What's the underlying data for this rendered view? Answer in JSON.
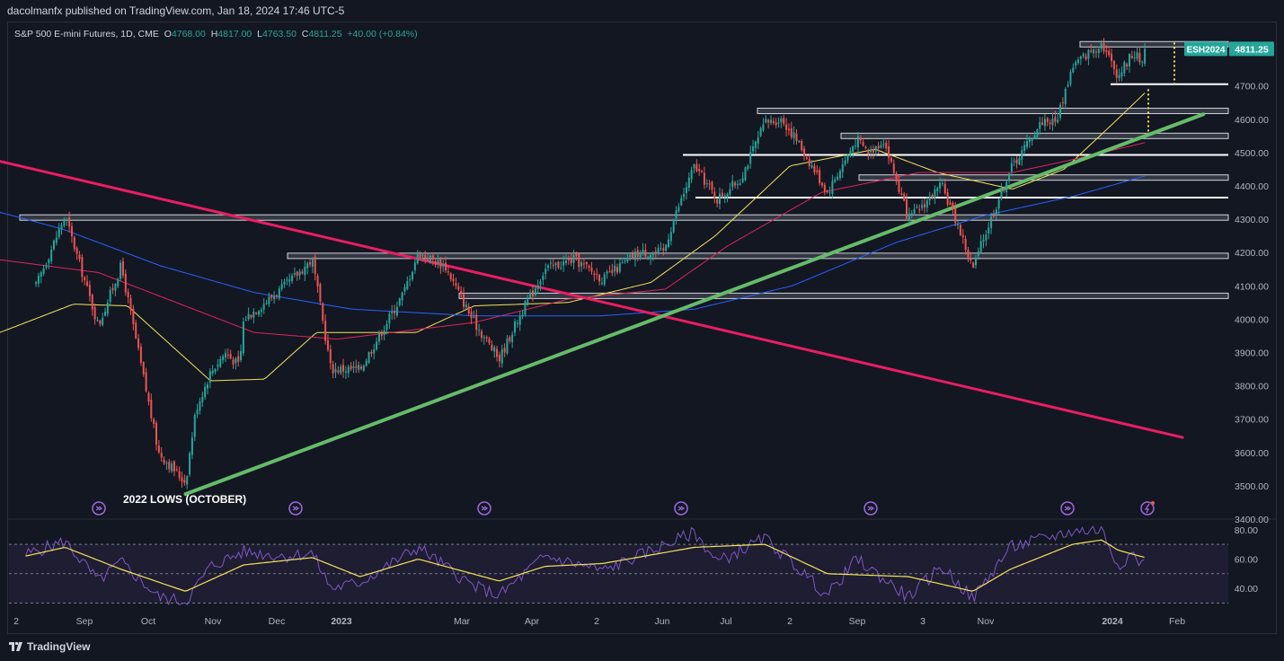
{
  "header": {
    "published": "dacolmanfx published on TradingView.com, Jan 18, 2024 17:46 UTC-5"
  },
  "legend": {
    "symbol": "S&P 500 E-mini Futures, 1D, CME",
    "open_label": "O",
    "open": "4768.00",
    "high_label": "H",
    "high": "4817.00",
    "low_label": "L",
    "low": "4763.50",
    "close_label": "C",
    "close": "4811.25",
    "change": "+40.00 (+0.84%)"
  },
  "price_tag": {
    "ticker": "ESH2024",
    "price": "4811.25"
  },
  "annotation": {
    "lows_label": "2022 LOWS (OCTOBER)"
  },
  "footer": {
    "brand": "TradingView"
  },
  "colors": {
    "background": "#131722",
    "up_candle": "#26a69a",
    "down_candle": "#ef5350",
    "trendline_down": "#e91e63",
    "trendline_up": "#66bb6a",
    "ma_fast": "#f5e35b",
    "ma_mid": "#e0245e",
    "ma_slow": "#2962ff",
    "rsi_line": "#7e57c2",
    "rsi_signal": "#f5e35b",
    "ticker_tag": "#26a69a"
  },
  "chart_data": [
    {
      "type": "candlestick",
      "title": "S&P 500 E-mini Futures, 1D, CME",
      "x_tick_labels": [
        "2",
        "Sep",
        "Oct",
        "Nov",
        "Dec",
        "2023",
        "Mar",
        "Apr",
        "2",
        "Jun",
        "Jul",
        "2",
        "Sep",
        "3",
        "Nov",
        "2024",
        "Feb"
      ],
      "y_tick_labels": [
        "4700.00",
        "4600.00",
        "4500.00",
        "4400.00",
        "4300.00",
        "4200.00",
        "4100.00",
        "4000.00",
        "3900.00",
        "3800.00",
        "3700.00",
        "3600.00",
        "3500.00",
        "3400.00"
      ],
      "ylim": [
        3400,
        4850
      ],
      "price_anchors": [
        [
          "2022-08-02",
          4100
        ],
        [
          "2022-08-16",
          4310
        ],
        [
          "2022-09-01",
          3980
        ],
        [
          "2022-09-12",
          4160
        ],
        [
          "2022-09-30",
          3600
        ],
        [
          "2022-10-13",
          3510
        ],
        [
          "2022-10-18",
          3730
        ],
        [
          "2022-10-25",
          3840
        ],
        [
          "2022-11-01",
          3900
        ],
        [
          "2022-11-08",
          3860
        ],
        [
          "2022-11-10",
          4000
        ],
        [
          "2022-11-30",
          4100
        ],
        [
          "2022-12-13",
          4180
        ],
        [
          "2022-12-22",
          3850
        ],
        [
          "2023-01-05",
          3850
        ],
        [
          "2023-01-26",
          4080
        ],
        [
          "2023-02-02",
          4200
        ],
        [
          "2023-02-15",
          4160
        ],
        [
          "2023-02-28",
          4000
        ],
        [
          "2023-03-13",
          3880
        ],
        [
          "2023-03-22",
          4000
        ],
        [
          "2023-04-04",
          4150
        ],
        [
          "2023-04-18",
          4180
        ],
        [
          "2023-05-02",
          4120
        ],
        [
          "2023-05-19",
          4200
        ],
        [
          "2023-05-31",
          4200
        ],
        [
          "2023-06-05",
          4300
        ],
        [
          "2023-06-15",
          4460
        ],
        [
          "2023-06-26",
          4360
        ],
        [
          "2023-07-07",
          4420
        ],
        [
          "2023-07-19",
          4590
        ],
        [
          "2023-07-27",
          4600
        ],
        [
          "2023-08-03",
          4540
        ],
        [
          "2023-08-18",
          4380
        ],
        [
          "2023-09-01",
          4540
        ],
        [
          "2023-09-07",
          4500
        ],
        [
          "2023-09-14",
          4540
        ],
        [
          "2023-09-26",
          4300
        ],
        [
          "2023-10-12",
          4400
        ],
        [
          "2023-10-20",
          4280
        ],
        [
          "2023-10-27",
          4150
        ],
        [
          "2023-11-01",
          4240
        ],
        [
          "2023-11-14",
          4450
        ],
        [
          "2023-11-30",
          4600
        ],
        [
          "2023-12-06",
          4590
        ],
        [
          "2023-12-14",
          4760
        ],
        [
          "2023-12-28",
          4830
        ],
        [
          "2024-01-05",
          4730
        ],
        [
          "2024-01-12",
          4800
        ],
        [
          "2024-01-17",
          4770
        ],
        [
          "2024-01-18",
          4811.25
        ]
      ],
      "horizontal_levels": [
        {
          "price": 4825,
          "type": "zone"
        },
        {
          "price": 4705,
          "type": "line"
        },
        {
          "price": 4625,
          "type": "zone"
        },
        {
          "price": 4550,
          "type": "zone"
        },
        {
          "price": 4493,
          "type": "line"
        },
        {
          "price": 4425,
          "type": "zone"
        },
        {
          "price": 4365,
          "type": "line"
        },
        {
          "price": 4305,
          "type": "zone"
        },
        {
          "price": 4190,
          "type": "zone"
        },
        {
          "price": 4070,
          "type": "zone"
        }
      ],
      "trendlines": [
        {
          "name": "descending",
          "from": [
            "2022-07-01",
            4495
          ],
          "to": [
            "2024-02-05",
            3645
          ]
        },
        {
          "name": "ascending",
          "from": [
            "2022-10-13",
            3475
          ],
          "to": [
            "2024-02-15",
            4615
          ]
        }
      ],
      "moving_averages": [
        {
          "color": "#f5e35b",
          "points": [
            [
              "2022-07-01",
              3925
            ],
            [
              "2022-08-20",
              4045
            ],
            [
              "2022-09-15",
              4040
            ],
            [
              "2022-10-25",
              3815
            ],
            [
              "2022-11-20",
              3820
            ],
            [
              "2022-12-15",
              3960
            ],
            [
              "2023-02-01",
              3960
            ],
            [
              "2023-03-01",
              4040
            ],
            [
              "2023-04-15",
              4050
            ],
            [
              "2023-05-25",
              4110
            ],
            [
              "2023-06-25",
              4250
            ],
            [
              "2023-07-31",
              4460
            ],
            [
              "2023-09-10",
              4510
            ],
            [
              "2023-10-10",
              4440
            ],
            [
              "2023-11-15",
              4390
            ],
            [
              "2023-12-10",
              4450
            ],
            [
              "2024-01-03",
              4590
            ],
            [
              "2024-01-18",
              4680
            ]
          ]
        },
        {
          "color": "#e0245e",
          "points": [
            [
              "2022-07-01",
              4190
            ],
            [
              "2022-09-01",
              4140
            ],
            [
              "2022-11-15",
              3960
            ],
            [
              "2022-12-25",
              3940
            ],
            [
              "2023-03-01",
              3990
            ],
            [
              "2023-04-15",
              4060
            ],
            [
              "2023-06-01",
              4090
            ],
            [
              "2023-07-01",
              4220
            ],
            [
              "2023-08-15",
              4380
            ],
            [
              "2023-10-01",
              4440
            ],
            [
              "2023-11-15",
              4440
            ],
            [
              "2023-12-15",
              4480
            ],
            [
              "2024-01-18",
              4530
            ]
          ]
        },
        {
          "color": "#2962ff",
          "points": [
            [
              "2022-07-01",
              4345
            ],
            [
              "2022-08-15",
              4270
            ],
            [
              "2022-10-01",
              4160
            ],
            [
              "2022-11-15",
              4080
            ],
            [
              "2023-01-01",
              4030
            ],
            [
              "2023-03-01",
              4010
            ],
            [
              "2023-05-01",
              4010
            ],
            [
              "2023-06-15",
              4030
            ],
            [
              "2023-08-01",
              4100
            ],
            [
              "2023-09-20",
              4230
            ],
            [
              "2023-11-01",
              4310
            ],
            [
              "2023-12-15",
              4370
            ],
            [
              "2024-01-18",
              4430
            ]
          ]
        }
      ]
    },
    {
      "type": "line",
      "name": "RSI",
      "y_tick_labels": [
        "80.00",
        "60.00",
        "40.00"
      ],
      "ylim": [
        26,
        86
      ],
      "bands": [
        30,
        50,
        70
      ],
      "series": [
        {
          "color": "#7e57c2",
          "points": [
            [
              "2022-07-28",
              63
            ],
            [
              "2022-08-16",
              72
            ],
            [
              "2022-09-01",
              45
            ],
            [
              "2022-09-12",
              58
            ],
            [
              "2022-09-30",
              34
            ],
            [
              "2022-10-13",
              31
            ],
            [
              "2022-10-25",
              55
            ],
            [
              "2022-11-10",
              65
            ],
            [
              "2022-11-30",
              62
            ],
            [
              "2022-12-13",
              64
            ],
            [
              "2022-12-22",
              40
            ],
            [
              "2023-01-05",
              44
            ],
            [
              "2023-01-26",
              62
            ],
            [
              "2023-02-02",
              68
            ],
            [
              "2023-02-28",
              42
            ],
            [
              "2023-03-13",
              35
            ],
            [
              "2023-04-04",
              62
            ],
            [
              "2023-05-02",
              52
            ],
            [
              "2023-06-15",
              78
            ],
            [
              "2023-06-26",
              58
            ],
            [
              "2023-07-19",
              74
            ],
            [
              "2023-08-03",
              55
            ],
            [
              "2023-08-18",
              35
            ],
            [
              "2023-09-01",
              60
            ],
            [
              "2023-09-26",
              34
            ],
            [
              "2023-10-12",
              55
            ],
            [
              "2023-10-27",
              33
            ],
            [
              "2023-11-14",
              68
            ],
            [
              "2023-12-14",
              79
            ],
            [
              "2023-12-28",
              80
            ],
            [
              "2024-01-05",
              56
            ],
            [
              "2024-01-12",
              64
            ],
            [
              "2024-01-17",
              55
            ],
            [
              "2024-01-18",
              58
            ]
          ]
        },
        {
          "color": "#f5e35b",
          "points": [
            [
              "2022-07-28",
              62
            ],
            [
              "2022-08-16",
              68
            ],
            [
              "2022-09-12",
              53
            ],
            [
              "2022-10-13",
              38
            ],
            [
              "2022-11-10",
              56
            ],
            [
              "2022-12-13",
              61
            ],
            [
              "2023-01-05",
              48
            ],
            [
              "2023-02-02",
              60
            ],
            [
              "2023-03-13",
              45
            ],
            [
              "2023-04-04",
              55
            ],
            [
              "2023-05-02",
              57
            ],
            [
              "2023-06-15",
              68
            ],
            [
              "2023-07-19",
              70
            ],
            [
              "2023-08-18",
              50
            ],
            [
              "2023-09-26",
              48
            ],
            [
              "2023-10-27",
              38
            ],
            [
              "2023-11-14",
              53
            ],
            [
              "2023-12-14",
              70
            ],
            [
              "2023-12-28",
              73
            ],
            [
              "2024-01-05",
              66
            ],
            [
              "2024-01-18",
              61
            ]
          ]
        }
      ]
    }
  ]
}
